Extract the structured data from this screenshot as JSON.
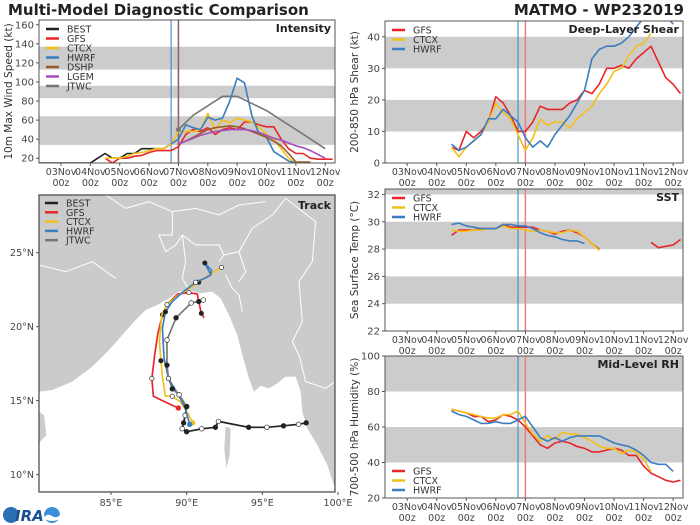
{
  "header": {
    "title": "Multi-Model Diagnostic Comparison",
    "storm": "MATMO - WP232019",
    "logo_text": "CIRA"
  },
  "colors": {
    "BEST": "#222222",
    "GFS": "#e8262a",
    "CTCX": "#f2c018",
    "HWRF": "#3a7dc0",
    "DSHP": "#9b5a2b",
    "LGEM": "#a54cc0",
    "JTWC": "#777777",
    "band": "#cccccc",
    "land": "#cbcbcb",
    "init_line": "#3a7dc0",
    "now_line": "#ef7d7d"
  },
  "markers": {
    "current_time": "06Nov 18z",
    "forecast_time": "07Nov 00z"
  },
  "chart_data": [
    {
      "id": "intensity",
      "type": "line",
      "title": "Intensity",
      "ylabel": "10m Max Wind Speed (kt)",
      "xlim": [
        "02Nov 06z",
        "12Nov 08z"
      ],
      "ylim": [
        15,
        165
      ],
      "yticks": [
        20,
        40,
        60,
        80,
        100,
        120,
        140,
        160
      ],
      "xticks": [
        "03Nov",
        "04Nov",
        "05Nov",
        "06Nov",
        "07Nov",
        "08Nov",
        "09Nov",
        "10Nov",
        "11Nov",
        "12Nov"
      ],
      "xtick_sub": "00z",
      "bands": [
        [
          34,
          64
        ],
        [
          83,
          96
        ],
        [
          113,
          137
        ]
      ],
      "legend": "top-left",
      "series": [
        {
          "name": "BEST",
          "start": "02Nov 06z",
          "values": [
            15,
            15,
            15,
            15,
            15,
            15,
            15,
            15,
            20,
            25,
            20,
            20,
            25,
            25,
            30,
            30,
            30,
            30,
            35
          ]
        },
        {
          "name": "GFS",
          "start": "04Nov 12z",
          "values": [
            20,
            15,
            20,
            20,
            22,
            23,
            26,
            28,
            28,
            28,
            32,
            45,
            50,
            48,
            52,
            45,
            50,
            52,
            50,
            58,
            58,
            55,
            53,
            53,
            40,
            30,
            25,
            25,
            20,
            19,
            19,
            19
          ]
        },
        {
          "name": "CTCX",
          "start": "04Nov 12z",
          "values": [
            20,
            20,
            20,
            22,
            25,
            26,
            28,
            30,
            30,
            35,
            48,
            48,
            48,
            50,
            67,
            50,
            60,
            57,
            62,
            60,
            58,
            52,
            45,
            40,
            30,
            20,
            15
          ]
        },
        {
          "name": "HWRF",
          "start": "06Nov 18z",
          "values": [
            35,
            40,
            55,
            52,
            50,
            63,
            60,
            62,
            80,
            104,
            99,
            65,
            45,
            42,
            27,
            22,
            17,
            15
          ]
        },
        {
          "name": "DSHP",
          "start": "07Nov 00z",
          "values": [
            35,
            38,
            42,
            46,
            50,
            52,
            53,
            54,
            53,
            51,
            48,
            45,
            42,
            38,
            33,
            25,
            16,
            16,
            16
          ]
        },
        {
          "name": "LGEM",
          "start": "07Nov 00z",
          "values": [
            35,
            38,
            41,
            44,
            46,
            48,
            49,
            50,
            50,
            50,
            49,
            47,
            44,
            41,
            39,
            36,
            33,
            31,
            28,
            24,
            20
          ]
        },
        {
          "name": "JTWC",
          "points": [
            [
              "07Nov 00z",
              50
            ],
            [
              "07Nov 12z",
              65
            ],
            [
              "08Nov 00z",
              75
            ],
            [
              "08Nov 12z",
              85
            ],
            [
              "09Nov 00z",
              85
            ],
            [
              "10Nov 00z",
              70
            ],
            [
              "11Nov 00z",
              50
            ],
            [
              "12Nov 00z",
              30
            ]
          ]
        }
      ]
    },
    {
      "id": "shear",
      "type": "line",
      "title": "Deep-Layer Shear",
      "ylabel": "200-850 hPa Shear (kt)",
      "xlim": [
        "02Nov 06z",
        "12Nov 08z"
      ],
      "ylim": [
        0,
        45
      ],
      "yticks": [
        0,
        10,
        20,
        30,
        40
      ],
      "xticks": [
        "03Nov",
        "04Nov",
        "05Nov",
        "06Nov",
        "07Nov",
        "08Nov",
        "09Nov",
        "10Nov",
        "11Nov",
        "12Nov"
      ],
      "xtick_sub": "00z",
      "bands": [
        [
          10,
          20
        ],
        [
          30,
          40
        ]
      ],
      "legend": "top-left",
      "series": [
        {
          "name": "GFS",
          "start": "04Nov 12z",
          "values": [
            5,
            4,
            10,
            8,
            10,
            13,
            21,
            19,
            15,
            10,
            10,
            13,
            18,
            17,
            17,
            17,
            19,
            20,
            23,
            22,
            25,
            30,
            30,
            31,
            30,
            33,
            35,
            37,
            32,
            27,
            25,
            22
          ]
        },
        {
          "name": "CTCX",
          "start": "04Nov 12z",
          "values": [
            5,
            2,
            5,
            7,
            9,
            13,
            19,
            16,
            14,
            9,
            4,
            8,
            14,
            12,
            13,
            13,
            11,
            14,
            16,
            18,
            22,
            25,
            29,
            30,
            34,
            37,
            38,
            41
          ]
        },
        {
          "name": "HWRF",
          "start": "04Nov 12z",
          "values": [
            6,
            4,
            5,
            7,
            9,
            14,
            14,
            17,
            15,
            13,
            8,
            5,
            7,
            5,
            9,
            12,
            15,
            19,
            23,
            33,
            36,
            37,
            37,
            38,
            40,
            43,
            46,
            48,
            48,
            47,
            44
          ]
        }
      ]
    },
    {
      "id": "sst",
      "type": "line",
      "title": "SST",
      "ylabel": "Sea Surface Temp (°C)",
      "xlim": [
        "02Nov 06z",
        "12Nov 08z"
      ],
      "ylim": [
        22,
        32.4
      ],
      "yticks": [
        22,
        24,
        26,
        28,
        30,
        32
      ],
      "xticks": [
        "03Nov",
        "04Nov",
        "05Nov",
        "06Nov",
        "07Nov",
        "08Nov",
        "09Nov",
        "10Nov",
        "11Nov",
        "12Nov"
      ],
      "xtick_sub": "00z",
      "bands": [
        [
          24,
          26
        ],
        [
          28,
          30
        ],
        [
          32,
          33
        ]
      ],
      "legend": "top-left",
      "series": [
        {
          "name": "GFS",
          "start": "04Nov 12z",
          "values": [
            29.0,
            29.4,
            29.4,
            29.4,
            29.5,
            29.5,
            29.5,
            29.8,
            29.6,
            29.6,
            29.6,
            29.6,
            29.4,
            29.3,
            29.1,
            29.3,
            29.4,
            29.2,
            28.9,
            28.4,
            28.0,
            null,
            null,
            null,
            null,
            null,
            null,
            28.5,
            28.1,
            28.2,
            28.3,
            28.7
          ]
        },
        {
          "name": "CTCX",
          "start": "04Nov 12z",
          "values": [
            29.4,
            29.3,
            29.3,
            29.4,
            29.4,
            29.5,
            29.5,
            29.7,
            29.5,
            29.5,
            29.4,
            29.3,
            29.4,
            29.3,
            29.2,
            29.2,
            29.4,
            29.3,
            28.9,
            28.4,
            27.9
          ]
        },
        {
          "name": "HWRF",
          "start": "04Nov 12z",
          "values": [
            29.8,
            29.9,
            29.7,
            29.6,
            29.5,
            29.5,
            29.5,
            29.8,
            29.8,
            29.7,
            29.7,
            29.5,
            29.2,
            29.0,
            28.9,
            28.7,
            28.6,
            28.6,
            28.4
          ]
        }
      ]
    },
    {
      "id": "rh",
      "type": "line",
      "title": "Mid-Level RH",
      "ylabel": "700-500 hPa Humidity (%)",
      "xlim": [
        "02Nov 06z",
        "12Nov 08z"
      ],
      "ylim": [
        20,
        100
      ],
      "yticks": [
        20,
        40,
        60,
        80,
        100
      ],
      "xticks": [
        "03Nov",
        "04Nov",
        "05Nov",
        "06Nov",
        "07Nov",
        "08Nov",
        "09Nov",
        "10Nov",
        "11Nov",
        "12Nov"
      ],
      "xtick_sub": "00z",
      "bands": [
        [
          40,
          60
        ],
        [
          80,
          100
        ]
      ],
      "legend": "bottom-left",
      "series": [
        {
          "name": "GFS",
          "start": "04Nov 12z",
          "values": [
            70,
            69,
            68,
            66,
            66,
            63,
            64,
            67,
            66,
            64,
            60,
            55,
            50,
            48,
            51,
            52,
            51,
            49,
            48,
            46,
            46,
            47,
            48,
            47,
            44,
            44,
            38,
            34,
            32,
            30,
            29,
            30
          ]
        },
        {
          "name": "CTCX",
          "start": "04Nov 12z",
          "values": [
            70,
            69,
            68,
            67,
            66,
            65,
            65,
            67,
            67,
            69,
            62,
            56,
            52,
            55,
            53,
            57,
            56,
            56,
            54,
            52,
            49,
            48,
            48,
            45,
            47,
            46,
            42,
            35
          ]
        },
        {
          "name": "HWRF",
          "start": "04Nov 12z",
          "values": [
            69,
            67,
            66,
            64,
            62,
            62,
            63,
            62,
            62,
            64,
            66,
            60,
            54,
            52,
            54,
            52,
            54,
            55,
            55,
            55,
            55,
            53,
            51,
            50,
            49,
            47,
            44,
            40,
            39,
            39,
            35
          ]
        }
      ]
    },
    {
      "id": "track",
      "type": "map",
      "title": "Track",
      "lon_range": [
        80,
        100
      ],
      "lat_range": [
        8.9,
        28.9
      ],
      "lon_ticks": [
        {
          "v": 85,
          "label": "85°E"
        },
        {
          "v": 90,
          "label": "90°E"
        },
        {
          "v": 95,
          "label": "95°E"
        },
        {
          "v": 100,
          "label": "100°E"
        }
      ],
      "lat_ticks": [
        {
          "v": 25,
          "label": "25°N"
        },
        {
          "v": 20,
          "label": "20°N"
        },
        {
          "v": 15,
          "label": "15°N"
        },
        {
          "v": 10,
          "label": "10°N"
        }
      ],
      "legend": "top-left",
      "series": [
        {
          "name": "BEST",
          "points": [
            [
              97.9,
              13.5
            ],
            [
              97.4,
              13.4
            ],
            [
              96.4,
              13.3
            ],
            [
              95.3,
              13.2
            ],
            [
              94.1,
              13.2
            ],
            [
              92.1,
              13.6
            ],
            [
              91.9,
              13.2
            ],
            [
              91.0,
              13.1
            ],
            [
              90.0,
              12.9
            ],
            [
              89.7,
              13.1
            ],
            [
              89.8,
              13.5
            ],
            [
              89.9,
              14.0
            ],
            [
              90.0,
              14.6
            ]
          ]
        },
        {
          "name": "GFS",
          "points": [
            [
              89.45,
              14.5
            ],
            [
              88.6,
              14.9
            ],
            [
              87.8,
              15.3
            ],
            [
              87.7,
              16.5
            ],
            [
              87.9,
              18.2
            ],
            [
              88.1,
              19.55
            ],
            [
              88.4,
              20.8
            ],
            [
              88.7,
              21.5
            ],
            [
              89.4,
              22.2
            ],
            [
              90.15,
              22.3
            ],
            [
              90.7,
              22.2
            ],
            [
              90.8,
              21.7
            ],
            [
              90.97,
              20.9
            ],
            [
              91.15,
              20.6
            ]
          ]
        },
        {
          "name": "CTCX",
          "points": [
            [
              90.4,
              13.5
            ],
            [
              90.1,
              14.1
            ],
            [
              89.6,
              14.9
            ],
            [
              89.05,
              15.3
            ],
            [
              88.6,
              15.3
            ],
            [
              88.4,
              16.6
            ],
            [
              88.3,
              17.7
            ],
            [
              88.2,
              19.0
            ],
            [
              88.35,
              20.8
            ],
            [
              88.7,
              21.5
            ],
            [
              89.4,
              22.1
            ],
            [
              89.9,
              22.4
            ],
            [
              90.8,
              23.0
            ],
            [
              91.5,
              23.5
            ],
            [
              92.1,
              23.9
            ],
            [
              92.3,
              24.0
            ]
          ]
        },
        {
          "name": "HWRF",
          "points": [
            [
              90.2,
              13.4
            ],
            [
              89.9,
              14.5
            ],
            [
              89.45,
              15.4
            ],
            [
              88.8,
              16.5
            ],
            [
              88.5,
              17.9
            ],
            [
              88.4,
              19.9
            ],
            [
              88.6,
              21.0
            ],
            [
              89.05,
              21.7
            ],
            [
              89.7,
              22.3
            ],
            [
              90.6,
              23.0
            ],
            [
              91.25,
              23.3
            ],
            [
              91.6,
              23.5
            ],
            [
              91.2,
              24.3
            ],
            [
              91.65,
              23.8
            ],
            [
              91.6,
              23.6
            ]
          ]
        },
        {
          "name": "JTWC",
          "points": [
            [
              90.0,
              14.6
            ],
            [
              89.5,
              15.4
            ],
            [
              89.05,
              15.8
            ],
            [
              88.8,
              16.5
            ],
            [
              88.7,
              17.4
            ],
            [
              88.7,
              19.1
            ],
            [
              89.3,
              20.6
            ],
            [
              90.3,
              21.6
            ],
            [
              90.8,
              21.7
            ],
            [
              91.1,
              21.8
            ]
          ]
        }
      ]
    }
  ]
}
